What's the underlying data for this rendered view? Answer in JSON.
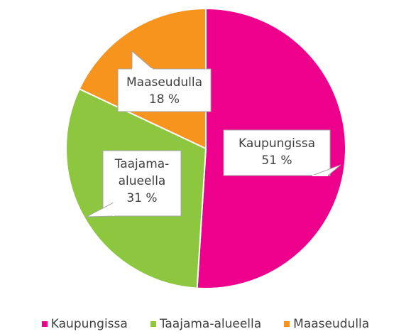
{
  "chart_data": {
    "type": "pie",
    "categories": [
      "Kaupungissa",
      "Taajama-alueella",
      "Maaseudulla"
    ],
    "values": [
      51,
      31,
      18
    ],
    "value_labels": [
      "51 %",
      "31 %",
      "18 %"
    ],
    "colors": [
      "#ec008c",
      "#8dc63f",
      "#f7941d"
    ],
    "legend": "bottom"
  }
}
